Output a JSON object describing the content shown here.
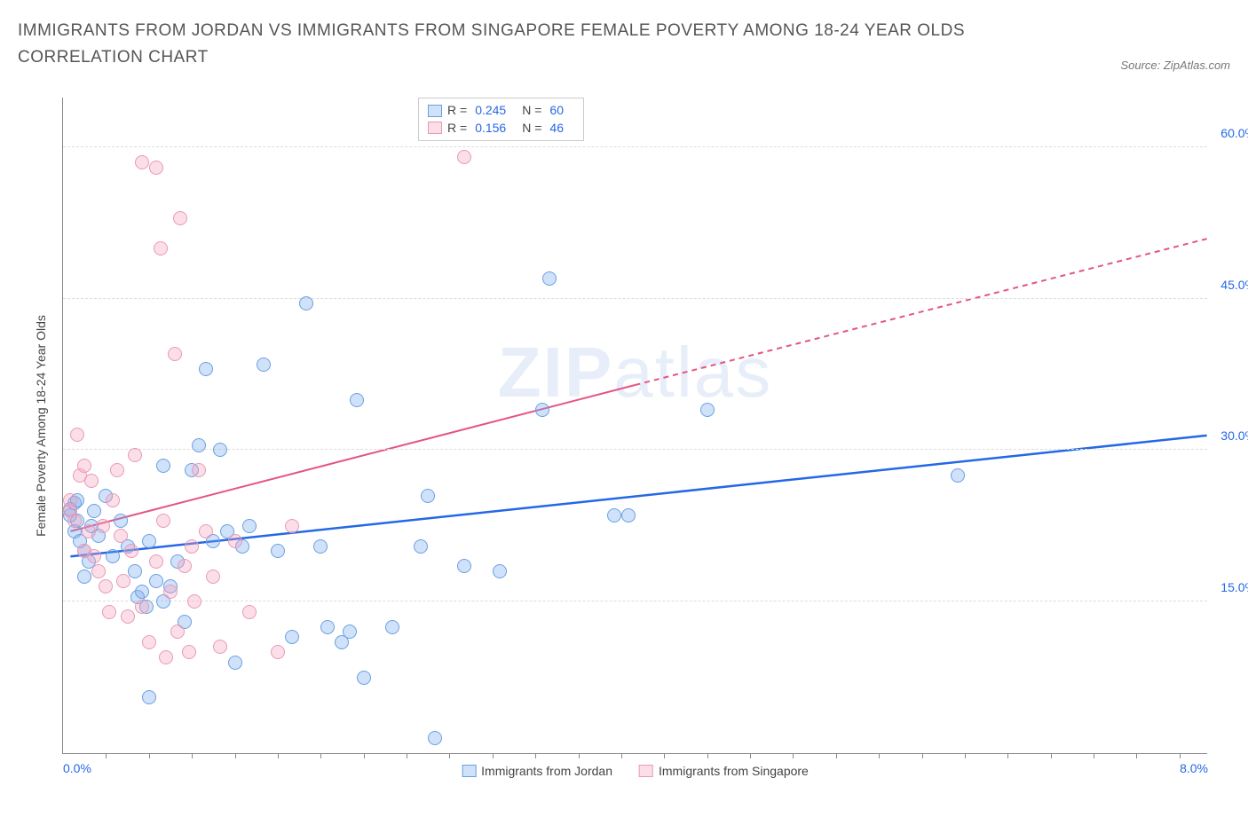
{
  "title": "IMMIGRANTS FROM JORDAN VS IMMIGRANTS FROM SINGAPORE FEMALE POVERTY AMONG 18-24 YEAR OLDS CORRELATION CHART",
  "source": "Source: ZipAtlas.com",
  "watermark_bold": "ZIP",
  "watermark_light": "atlas",
  "y_axis_title": "Female Poverty Among 18-24 Year Olds",
  "chart": {
    "type": "scatter",
    "background_color": "#ffffff",
    "grid_color": "#dddddd",
    "axis_color": "#888888",
    "xlim": [
      0,
      8
    ],
    "ylim": [
      0,
      65
    ],
    "x_ticks": [
      0,
      8
    ],
    "x_tick_labels": [
      "0.0%",
      "8.0%"
    ],
    "x_minor_ticks": [
      0.3,
      0.6,
      0.9,
      1.2,
      1.5,
      1.8,
      2.1,
      2.4,
      2.7,
      3.0,
      3.3,
      3.6,
      3.9,
      4.2,
      4.5,
      4.8,
      5.1,
      5.4,
      5.7,
      6.0,
      6.3,
      6.6,
      6.9,
      7.2,
      7.5,
      7.8
    ],
    "y_gridlines": [
      15,
      30,
      45,
      60
    ],
    "y_tick_labels": [
      "15.0%",
      "30.0%",
      "45.0%",
      "60.0%"
    ],
    "marker_radius": 8,
    "marker_border_width": 1.5,
    "series": [
      {
        "name": "Immigrants from Jordan",
        "fill_color": "rgba(120, 170, 240, 0.35)",
        "stroke_color": "#6aa0e0",
        "line_color": "#2468e5",
        "line_width": 2.5,
        "R": "0.245",
        "N": "60",
        "trend": {
          "x1": 0.05,
          "y1": 19.5,
          "x2": 8.0,
          "y2": 31.5
        },
        "points": [
          [
            0.05,
            23.5
          ],
          [
            0.05,
            24.2
          ],
          [
            0.08,
            22.0
          ],
          [
            0.08,
            24.8
          ],
          [
            0.1,
            25.0
          ],
          [
            0.1,
            23.0
          ],
          [
            0.12,
            21.0
          ],
          [
            0.15,
            20.0
          ],
          [
            0.15,
            17.5
          ],
          [
            0.18,
            19.0
          ],
          [
            0.2,
            22.5
          ],
          [
            0.22,
            24.0
          ],
          [
            0.25,
            21.5
          ],
          [
            0.3,
            25.5
          ],
          [
            0.35,
            19.5
          ],
          [
            0.4,
            23.0
          ],
          [
            0.45,
            20.5
          ],
          [
            0.5,
            18.0
          ],
          [
            0.52,
            15.5
          ],
          [
            0.55,
            16.0
          ],
          [
            0.58,
            14.5
          ],
          [
            0.6,
            21.0
          ],
          [
            0.65,
            17.0
          ],
          [
            0.7,
            15.0
          ],
          [
            0.7,
            28.5
          ],
          [
            0.75,
            16.5
          ],
          [
            0.8,
            19.0
          ],
          [
            0.85,
            13.0
          ],
          [
            0.9,
            28.0
          ],
          [
            0.95,
            30.5
          ],
          [
            1.0,
            38.0
          ],
          [
            1.05,
            21.0
          ],
          [
            1.1,
            30.0
          ],
          [
            1.15,
            22.0
          ],
          [
            1.2,
            9.0
          ],
          [
            1.25,
            20.5
          ],
          [
            1.3,
            22.5
          ],
          [
            1.4,
            38.5
          ],
          [
            1.5,
            20.0
          ],
          [
            1.6,
            11.5
          ],
          [
            1.7,
            44.5
          ],
          [
            1.8,
            20.5
          ],
          [
            1.85,
            12.5
          ],
          [
            1.95,
            11.0
          ],
          [
            2.0,
            12.0
          ],
          [
            2.05,
            35.0
          ],
          [
            2.1,
            7.5
          ],
          [
            2.3,
            12.5
          ],
          [
            2.5,
            20.5
          ],
          [
            2.55,
            25.5
          ],
          [
            2.6,
            1.5
          ],
          [
            2.8,
            18.5
          ],
          [
            3.05,
            18.0
          ],
          [
            3.35,
            34.0
          ],
          [
            3.4,
            47.0
          ],
          [
            3.85,
            23.5
          ],
          [
            3.95,
            23.5
          ],
          [
            4.5,
            34.0
          ],
          [
            6.25,
            27.5
          ],
          [
            0.6,
            5.5
          ]
        ]
      },
      {
        "name": "Immigrants from Singapore",
        "fill_color": "rgba(245, 160, 190, 0.35)",
        "stroke_color": "#e89ab5",
        "line_color": "#e35583",
        "line_width": 2,
        "R": "0.156",
        "N": "46",
        "trend_solid": {
          "x1": 0.05,
          "y1": 22.0,
          "x2": 4.0,
          "y2": 36.5
        },
        "trend_dash": {
          "x1": 4.0,
          "y1": 36.5,
          "x2": 8.0,
          "y2": 51.0
        },
        "points": [
          [
            0.05,
            24.0
          ],
          [
            0.05,
            25.0
          ],
          [
            0.08,
            23.0
          ],
          [
            0.1,
            31.5
          ],
          [
            0.12,
            27.5
          ],
          [
            0.15,
            20.0
          ],
          [
            0.15,
            28.5
          ],
          [
            0.18,
            22.0
          ],
          [
            0.2,
            27.0
          ],
          [
            0.22,
            19.5
          ],
          [
            0.25,
            18.0
          ],
          [
            0.28,
            22.5
          ],
          [
            0.3,
            16.5
          ],
          [
            0.32,
            14.0
          ],
          [
            0.35,
            25.0
          ],
          [
            0.38,
            28.0
          ],
          [
            0.4,
            21.5
          ],
          [
            0.42,
            17.0
          ],
          [
            0.45,
            13.5
          ],
          [
            0.48,
            20.0
          ],
          [
            0.5,
            29.5
          ],
          [
            0.55,
            14.5
          ],
          [
            0.55,
            58.5
          ],
          [
            0.6,
            11.0
          ],
          [
            0.65,
            19.0
          ],
          [
            0.65,
            58.0
          ],
          [
            0.68,
            50.0
          ],
          [
            0.7,
            23.0
          ],
          [
            0.72,
            9.5
          ],
          [
            0.75,
            16.0
          ],
          [
            0.78,
            39.5
          ],
          [
            0.8,
            12.0
          ],
          [
            0.82,
            53.0
          ],
          [
            0.85,
            18.5
          ],
          [
            0.88,
            10.0
          ],
          [
            0.9,
            20.5
          ],
          [
            0.92,
            15.0
          ],
          [
            0.95,
            28.0
          ],
          [
            1.0,
            22.0
          ],
          [
            1.05,
            17.5
          ],
          [
            1.1,
            10.5
          ],
          [
            1.2,
            21.0
          ],
          [
            1.3,
            14.0
          ],
          [
            1.5,
            10.0
          ],
          [
            1.6,
            22.5
          ],
          [
            2.8,
            59.0
          ]
        ]
      }
    ]
  },
  "legend_series1_label": "Immigrants from Jordan",
  "legend_series2_label": "Immigrants from Singapore"
}
